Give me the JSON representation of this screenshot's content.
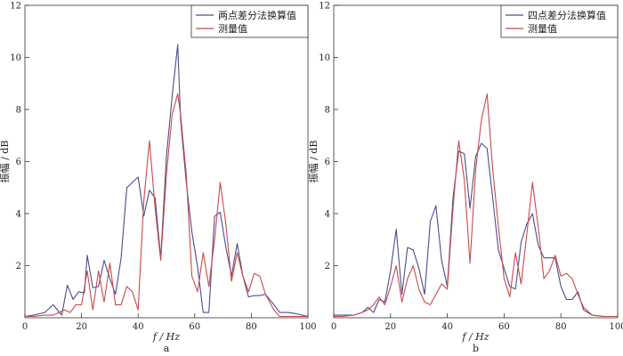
{
  "chart_data": [
    {
      "type": "line",
      "panel_label": "a",
      "xlabel": "f / Hz",
      "ylabel": "振幅 / dB",
      "xlim": [
        0,
        100
      ],
      "ylim": [
        0,
        12
      ],
      "xticks": [
        0,
        20,
        40,
        60,
        80,
        100
      ],
      "yticks": [
        2,
        4,
        6,
        8,
        10,
        12
      ],
      "grid": false,
      "legend_position": "top-right",
      "series": [
        {
          "name": "两点差分法换算值",
          "color": "#4b4d8c",
          "x": [
            0,
            3,
            7,
            10,
            13,
            15,
            17,
            19,
            21,
            22,
            24,
            26,
            28,
            30,
            32,
            34,
            36,
            38,
            40,
            42,
            44,
            46,
            48,
            50,
            52,
            54,
            55,
            57,
            59,
            61,
            63,
            65,
            67,
            69,
            71,
            73,
            75,
            77,
            79,
            81,
            83,
            85,
            88,
            90,
            93,
            96,
            100
          ],
          "values": [
            0.05,
            0.1,
            0.2,
            0.5,
            0.1,
            1.25,
            0.7,
            1.0,
            0.95,
            2.4,
            1.15,
            1.2,
            2.2,
            1.5,
            0.9,
            2.3,
            5.0,
            5.2,
            5.4,
            3.9,
            4.9,
            4.6,
            2.3,
            6.2,
            8.5,
            10.5,
            7.6,
            5.2,
            3.3,
            1.95,
            0.2,
            0.2,
            3.9,
            4.05,
            2.7,
            1.6,
            2.85,
            1.6,
            0.8,
            0.85,
            0.85,
            0.9,
            0.5,
            0.2,
            0.2,
            0.15,
            0.05
          ]
        },
        {
          "name": "测量值",
          "color": "#c84a4a",
          "x": [
            0,
            3,
            7,
            10,
            12,
            14,
            16,
            18,
            20,
            22,
            24,
            26,
            28,
            30,
            32,
            34,
            36,
            38,
            40,
            42,
            44,
            46,
            48,
            50,
            52,
            54,
            55,
            57,
            59,
            61,
            63,
            65,
            67,
            69,
            71,
            73,
            75,
            77,
            79,
            81,
            83,
            85,
            88,
            90,
            93,
            96,
            100
          ],
          "values": [
            0.05,
            0.05,
            0.1,
            0.1,
            0.2,
            0.3,
            0.2,
            0.5,
            0.5,
            1.8,
            0.3,
            1.8,
            0.6,
            2.1,
            0.5,
            0.5,
            1.2,
            1.0,
            0.3,
            4.5,
            6.8,
            4.2,
            2.2,
            5.5,
            7.8,
            8.6,
            7.8,
            5.5,
            1.6,
            1.0,
            2.5,
            1.2,
            3.0,
            5.2,
            3.6,
            1.4,
            2.5,
            1.6,
            1.0,
            1.7,
            1.6,
            0.9,
            0.3,
            0.05,
            0.05,
            0.05,
            0.05
          ]
        }
      ]
    },
    {
      "type": "line",
      "panel_label": "b",
      "xlabel": "f / Hz",
      "ylabel": "振幅 / dB",
      "xlim": [
        0,
        100
      ],
      "ylim": [
        0,
        12
      ],
      "xticks": [
        0,
        20,
        40,
        60,
        80,
        100
      ],
      "yticks": [
        2,
        4,
        6,
        8,
        10,
        12
      ],
      "grid": false,
      "legend_position": "top-right",
      "series": [
        {
          "name": "四点差分法换算值",
          "color": "#4b4d8c",
          "x": [
            0,
            3,
            7,
            10,
            12,
            14,
            16,
            18,
            20,
            22,
            24,
            26,
            28,
            30,
            32,
            34,
            36,
            38,
            40,
            42,
            44,
            46,
            48,
            50,
            52,
            54,
            56,
            58,
            60,
            62,
            64,
            66,
            68,
            70,
            72,
            74,
            76,
            78,
            80,
            82,
            84,
            86,
            88,
            91,
            95,
            100
          ],
          "values": [
            0.1,
            0.1,
            0.1,
            0.2,
            0.4,
            0.2,
            0.7,
            0.6,
            1.8,
            3.4,
            0.9,
            2.7,
            2.6,
            1.9,
            0.9,
            3.7,
            4.3,
            2.2,
            1.2,
            4.6,
            6.4,
            6.3,
            4.2,
            6.2,
            6.7,
            6.5,
            4.6,
            2.6,
            1.9,
            1.2,
            1.1,
            2.9,
            3.6,
            4.0,
            2.8,
            2.3,
            2.3,
            2.3,
            1.2,
            0.7,
            0.7,
            1.0,
            0.3,
            0.1,
            0.05,
            0.05
          ]
        },
        {
          "name": "测量值",
          "color": "#c84a4a",
          "x": [
            0,
            3,
            7,
            10,
            12,
            14,
            16,
            18,
            20,
            22,
            24,
            26,
            28,
            30,
            32,
            34,
            36,
            38,
            40,
            42,
            44,
            46,
            48,
            50,
            52,
            54,
            56,
            58,
            60,
            62,
            64,
            66,
            68,
            70,
            72,
            74,
            76,
            78,
            80,
            82,
            84,
            86,
            88,
            91,
            95,
            100
          ],
          "values": [
            0.05,
            0.05,
            0.1,
            0.2,
            0.3,
            0.5,
            0.8,
            0.5,
            1.2,
            2.0,
            0.6,
            1.5,
            2.0,
            1.1,
            0.6,
            0.5,
            0.9,
            1.3,
            1.1,
            4.2,
            6.8,
            5.3,
            2.1,
            5.7,
            7.6,
            8.6,
            5.7,
            3.5,
            1.5,
            0.8,
            2.5,
            1.3,
            3.2,
            5.2,
            3.5,
            1.5,
            1.8,
            2.4,
            1.6,
            1.7,
            1.5,
            0.9,
            0.4,
            0.1,
            0.05,
            0.05
          ]
        }
      ]
    }
  ]
}
